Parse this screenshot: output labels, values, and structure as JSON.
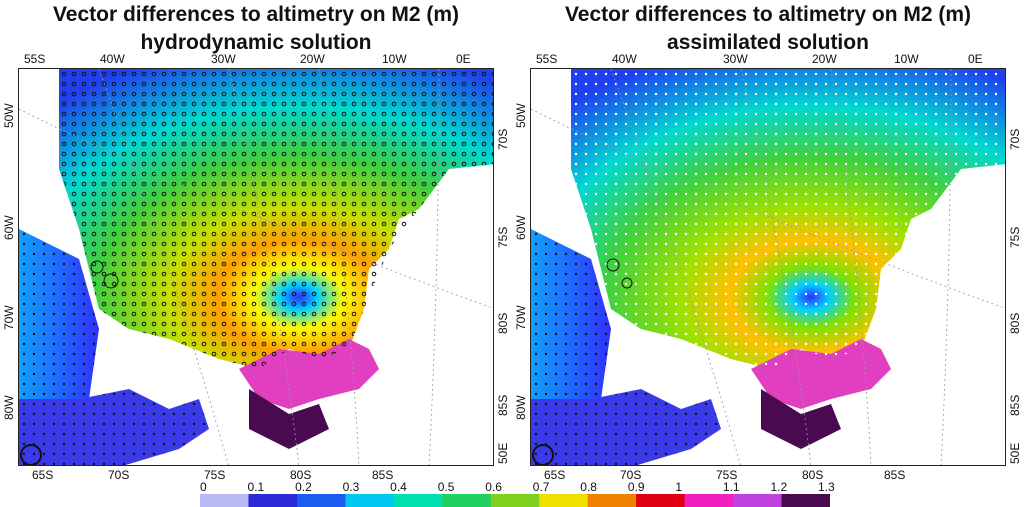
{
  "panels": [
    {
      "title_line1": "Vector differences to altimetry on M2 (m)",
      "title_line2": "hydrodynamic solution"
    },
    {
      "title_line1": "Vector differences to altimetry on M2 (m)",
      "title_line2": "assimilated solution"
    }
  ],
  "axes": {
    "top_labels": [
      "55S",
      "40W",
      "30W",
      "20W",
      "10W",
      "0E"
    ],
    "left_labels": [
      "50W",
      "60W",
      "70W",
      "80W"
    ],
    "right_labels": [
      "70S",
      "75S",
      "80S",
      "85S",
      "50E"
    ],
    "bottom_labels": [
      "65S",
      "70S",
      "75S",
      "80S",
      "85S"
    ]
  },
  "colorbar": {
    "ticks": [
      "0",
      "0.1",
      "0.2",
      "0.3",
      "0.4",
      "0.5",
      "0.6",
      "0.7",
      "0.8",
      "0.9",
      "1",
      "1.1",
      "1.2",
      "1.3"
    ],
    "min": 0,
    "max": 1.3,
    "colors": [
      "#b8b8f2",
      "#2a2ad8",
      "#1a5cf0",
      "#00c8f0",
      "#00e0b0",
      "#20d060",
      "#80d020",
      "#f0e000",
      "#f08000",
      "#e00010",
      "#f020c0",
      "#c040e0",
      "#4a0a50"
    ]
  }
}
